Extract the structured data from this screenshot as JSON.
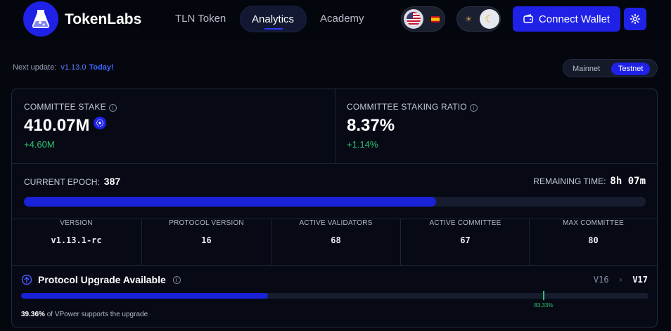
{
  "header": {
    "brand": "TokenLabs",
    "nav": [
      "TLN Token",
      "Analytics",
      "Academy"
    ],
    "active_nav": "Analytics",
    "connect_wallet_label": "Connect Wallet",
    "language_icon": "us-flag-icon",
    "theme_icons": [
      "sun-icon",
      "moon-icon"
    ]
  },
  "subheader": {
    "next_update_label": "Next update:",
    "next_update_version": "v1.13.0",
    "next_update_when": "Today!",
    "networks": [
      "Mainnet",
      "Testnet"
    ],
    "active_network": "Testnet"
  },
  "stats": {
    "committee_stake": {
      "label": "COMMITTEE STAKE",
      "value": "410.07M",
      "delta": "+4.60M"
    },
    "staking_ratio": {
      "label": "COMMITTEE STAKING RATIO",
      "value": "8.37%",
      "delta": "+1.14%"
    }
  },
  "epoch": {
    "current_label": "CURRENT EPOCH:",
    "current_value": "387",
    "remaining_label": "REMAINING TIME:",
    "remaining_value": "8h 07m",
    "progress_fraction": 0.663
  },
  "metrics": [
    {
      "label": "VERSION",
      "value": "v1.13.1-rc"
    },
    {
      "label": "PROTOCOL VERSION",
      "value": "16"
    },
    {
      "label": "ACTIVE VALIDATORS",
      "value": "68"
    },
    {
      "label": "ACTIVE COMMITTEE",
      "value": "67"
    },
    {
      "label": "MAX COMMITTEE",
      "value": "80"
    }
  ],
  "upgrade": {
    "title": "Protocol Upgrade Available",
    "from_version": "V16",
    "to_version": "V17",
    "support_fraction": 0.3936,
    "threshold_fraction": 0.8333,
    "threshold_label": "83.33%",
    "support_percent": "39.36%",
    "support_suffix": "of VPower supports the upgrade"
  },
  "colors": {
    "accent": "#1f22e6",
    "positive": "#2ec26d",
    "background": "#05070f"
  }
}
